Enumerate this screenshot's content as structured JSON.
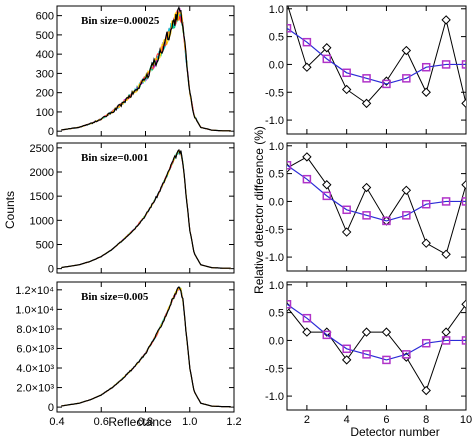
{
  "chart_data": [
    {
      "type": "line",
      "panel_label": "Bin size=0.00025",
      "xlabel": "",
      "ylabel": "",
      "xlim": [
        0.4,
        1.2
      ],
      "ylim": [
        -25,
        650
      ],
      "x_ticks": [
        0.4,
        0.6,
        0.8,
        1.0,
        1.2
      ],
      "y_ticks": [
        0,
        100,
        200,
        300,
        400,
        500,
        600
      ],
      "y_tick_labels": [
        "0",
        "100",
        "200",
        "300",
        "400",
        "500",
        "600"
      ],
      "series": [
        {
          "x": [
            0.4,
            0.5,
            0.55,
            0.6,
            0.65,
            0.7,
            0.75,
            0.8,
            0.85,
            0.88,
            0.9,
            0.92,
            0.94,
            0.95,
            0.96,
            0.97,
            0.98,
            1.0,
            1.02,
            1.05,
            1.1,
            1.15
          ],
          "y": [
            3,
            20,
            38,
            63,
            100,
            150,
            205,
            275,
            370,
            440,
            490,
            545,
            590,
            610,
            600,
            540,
            420,
            200,
            80,
            20,
            5,
            2
          ]
        }
      ]
    },
    {
      "type": "line",
      "panel_label": "Bin size=0.001",
      "xlabel": "",
      "ylabel": "Counts",
      "xlim": [
        0.4,
        1.2
      ],
      "ylim": [
        -90,
        2600
      ],
      "x_ticks": [
        0.4,
        0.6,
        0.8,
        1.0,
        1.2
      ],
      "y_ticks": [
        0,
        500,
        1000,
        1500,
        2000,
        2500
      ],
      "y_tick_labels": [
        "0",
        "500",
        "1000",
        "1500",
        "2000",
        "2500"
      ],
      "series": [
        {
          "x": [
            0.4,
            0.5,
            0.55,
            0.6,
            0.65,
            0.7,
            0.75,
            0.8,
            0.85,
            0.88,
            0.9,
            0.92,
            0.94,
            0.95,
            0.96,
            0.97,
            0.98,
            1.0,
            1.02,
            1.05,
            1.1,
            1.15
          ],
          "y": [
            10,
            80,
            150,
            250,
            400,
            600,
            820,
            1100,
            1480,
            1760,
            1960,
            2180,
            2360,
            2420,
            2400,
            2160,
            1680,
            800,
            320,
            80,
            20,
            10
          ]
        }
      ]
    },
    {
      "type": "line",
      "panel_label": "Bin size=0.005",
      "xlabel": "Reflectance",
      "ylabel": "",
      "xlim": [
        0.4,
        1.2
      ],
      "ylim": [
        -500,
        12800
      ],
      "x_ticks": [
        0.4,
        0.6,
        0.8,
        1.0,
        1.2
      ],
      "x_tick_labels": [
        "0.4",
        "0.6",
        "0.8",
        "1.0",
        "1.2"
      ],
      "y_ticks": [
        0,
        2000,
        4000,
        6000,
        8000,
        10000,
        12000
      ],
      "y_tick_labels": [
        "0",
        "2.0×10³",
        "4.0×10³",
        "6.0×10³",
        "8.0×10³",
        "1.0×10⁴",
        "1.2×10⁴"
      ],
      "series": [
        {
          "x": [
            0.4,
            0.5,
            0.55,
            0.6,
            0.65,
            0.7,
            0.75,
            0.8,
            0.85,
            0.88,
            0.9,
            0.92,
            0.94,
            0.95,
            0.96,
            0.97,
            0.98,
            1.0,
            1.02,
            1.05,
            1.1,
            1.15
          ],
          "y": [
            50,
            400,
            750,
            1250,
            2000,
            3000,
            4100,
            5500,
            7400,
            8800,
            9800,
            10900,
            11800,
            12100,
            12000,
            10800,
            8400,
            4000,
            1600,
            400,
            100,
            50
          ]
        }
      ]
    },
    {
      "type": "line",
      "xlabel": "",
      "ylabel": "",
      "xlim": [
        1,
        10
      ],
      "ylim": [
        -1.25,
        1.05
      ],
      "x_ticks": [
        2,
        4,
        6,
        8,
        10
      ],
      "y_ticks": [
        -1.0,
        -0.5,
        0.0,
        0.5,
        1.0
      ],
      "y_tick_labels": [
        "-1.0",
        "-0.5",
        "0.0",
        "0.5",
        "1.0"
      ],
      "series": [
        {
          "x": [
            1,
            2,
            3,
            4,
            5,
            6,
            7,
            8,
            9,
            10
          ],
          "y": [
            1.1,
            -0.05,
            0.3,
            -0.45,
            -0.7,
            -0.3,
            0.25,
            -0.5,
            0.8,
            -0.7
          ]
        },
        {
          "x": [
            1,
            2,
            3,
            4,
            5,
            6,
            7,
            8,
            9,
            10
          ],
          "y": [
            0.65,
            0.4,
            0.1,
            -0.15,
            -0.25,
            -0.35,
            -0.25,
            -0.05,
            0.0,
            0.0
          ]
        },
        {
          "x": [
            1,
            2,
            3,
            4,
            5,
            6,
            7,
            8,
            9,
            10
          ],
          "y": [
            0.65,
            0.4,
            0.1,
            -0.15,
            -0.25,
            -0.35,
            -0.25,
            -0.05,
            0.0,
            0.0
          ]
        }
      ]
    },
    {
      "type": "line",
      "xlabel": "",
      "ylabel": "Relative detector difference (%)",
      "xlim": [
        1,
        10
      ],
      "ylim": [
        -1.25,
        1.05
      ],
      "x_ticks": [
        2,
        4,
        6,
        8,
        10
      ],
      "y_ticks": [
        -1.0,
        -0.5,
        0.0,
        0.5,
        1.0
      ],
      "y_tick_labels": [
        "-1.0",
        "-0.5",
        "0.0",
        "0.5",
        "1.0"
      ],
      "series": [
        {
          "x": [
            1,
            2,
            3,
            4,
            5,
            6,
            7,
            8,
            9,
            10
          ],
          "y": [
            0.6,
            0.8,
            0.3,
            -0.55,
            0.25,
            -0.35,
            0.2,
            -0.75,
            -0.95,
            0.3
          ]
        },
        {
          "x": [
            1,
            2,
            3,
            4,
            5,
            6,
            7,
            8,
            9,
            10
          ],
          "y": [
            0.65,
            0.4,
            0.1,
            -0.15,
            -0.25,
            -0.35,
            -0.25,
            -0.05,
            0.0,
            0.0
          ]
        },
        {
          "x": [
            1,
            2,
            3,
            4,
            5,
            6,
            7,
            8,
            9,
            10
          ],
          "y": [
            0.65,
            0.4,
            0.1,
            -0.15,
            -0.25,
            -0.35,
            -0.25,
            -0.05,
            0.0,
            0.0
          ]
        }
      ]
    },
    {
      "type": "line",
      "xlabel": "Detector number",
      "ylabel": "",
      "xlim": [
        1,
        10
      ],
      "ylim": [
        -1.25,
        1.05
      ],
      "x_ticks": [
        2,
        4,
        6,
        8,
        10
      ],
      "x_tick_labels": [
        "2",
        "4",
        "6",
        "8",
        "10"
      ],
      "y_ticks": [
        -1.0,
        -0.5,
        0.0,
        0.5,
        1.0
      ],
      "y_tick_labels": [
        "-1.0",
        "-0.5",
        "0.0",
        "0.5",
        "1.0"
      ],
      "series": [
        {
          "x": [
            1,
            2,
            3,
            4,
            5,
            6,
            7,
            8,
            9,
            10
          ],
          "y": [
            0.6,
            0.15,
            0.15,
            -0.35,
            0.15,
            0.15,
            -0.3,
            -0.9,
            0.15,
            0.65
          ]
        },
        {
          "x": [
            1,
            2,
            3,
            4,
            5,
            6,
            7,
            8,
            9,
            10
          ],
          "y": [
            0.65,
            0.4,
            0.1,
            -0.15,
            -0.25,
            -0.35,
            -0.25,
            -0.05,
            0.0,
            0.0
          ]
        },
        {
          "x": [
            1,
            2,
            3,
            4,
            5,
            6,
            7,
            8,
            9,
            10
          ],
          "y": [
            0.65,
            0.4,
            0.1,
            -0.15,
            -0.25,
            -0.35,
            -0.25,
            -0.05,
            0.0,
            0.0
          ]
        }
      ]
    }
  ],
  "colors": {
    "histogram_lines": [
      "#000000",
      "#00cc66",
      "#cc00cc",
      "#00cccc",
      "#ff3333",
      "#ffcc00"
    ],
    "diamond_series": "#000000",
    "square_series_line": "#2b2bd6",
    "square_series_fill": "#b033c8"
  }
}
